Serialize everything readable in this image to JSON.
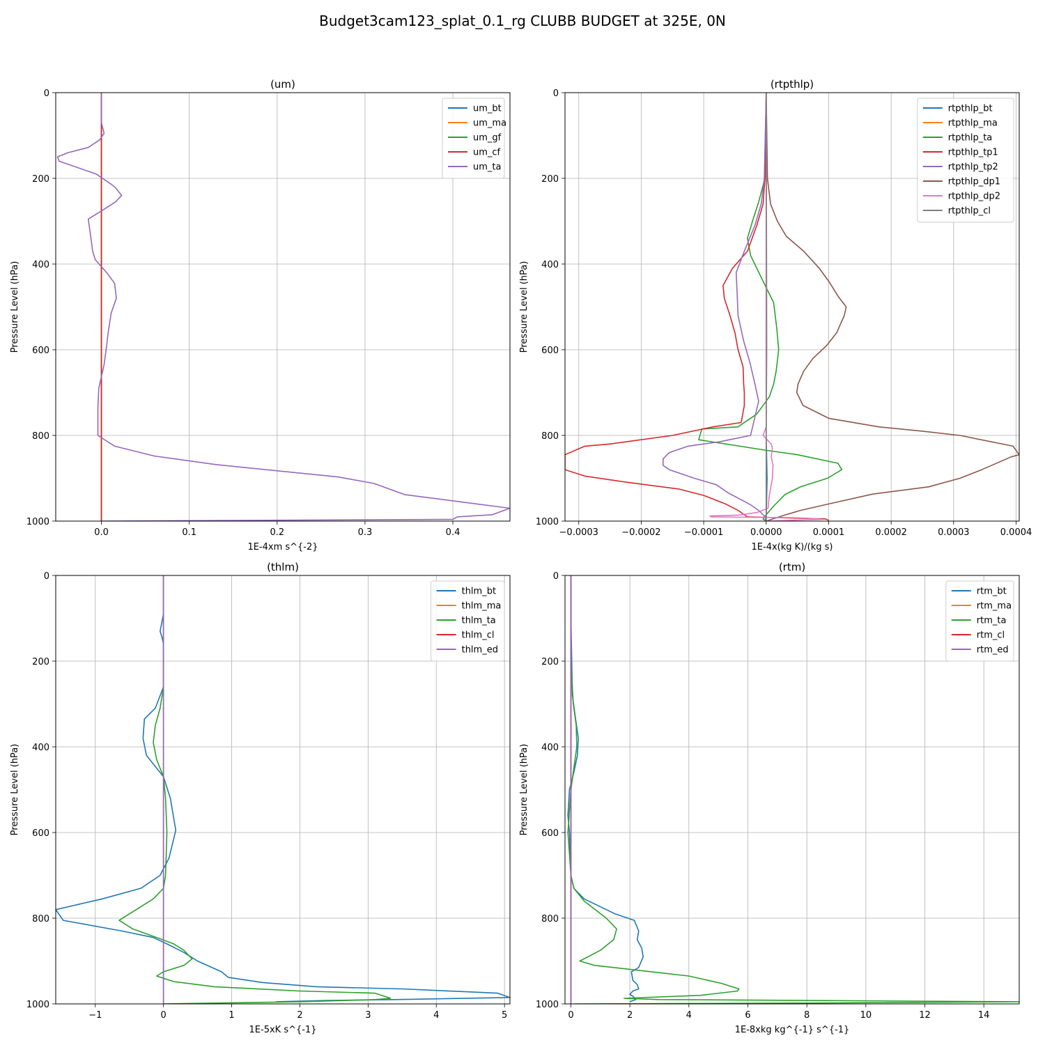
{
  "figure": {
    "title": "Budget3cam123_splat_0.1_rg CLUBB BUDGET at 325E, 0N"
  },
  "colors": [
    "#1f77b4",
    "#ff7f0e",
    "#2ca02c",
    "#d62728",
    "#9467bd",
    "#8c564b",
    "#e377c2",
    "#7f7f7f"
  ],
  "chart_data": [
    {
      "type": "line",
      "title": "(um)",
      "xlabel": "1E-4xm s^{-2}",
      "ylabel": "Pressure Level (hPa)",
      "xlim": [
        -0.052,
        0.465
      ],
      "ylim": [
        1000,
        0
      ],
      "xticks": [
        0.0,
        0.1,
        0.2,
        0.3,
        0.4
      ],
      "xtick_labels": [
        "0.0",
        "0.1",
        "0.2",
        "0.3",
        "0.4"
      ],
      "yticks": [
        0,
        200,
        400,
        600,
        800,
        1000
      ],
      "grid": true,
      "legend": "top-right",
      "series": [
        {
          "name": "um_bt",
          "color": "#1f77b4",
          "x": [
            0,
            0
          ],
          "y": [
            0,
            1000
          ]
        },
        {
          "name": "um_ma",
          "color": "#ff7f0e",
          "x": [
            0,
            0
          ],
          "y": [
            0,
            1000
          ]
        },
        {
          "name": "um_gf",
          "color": "#2ca02c",
          "x": [
            0,
            0
          ],
          "y": [
            0,
            1000
          ]
        },
        {
          "name": "um_cf",
          "color": "#d62728",
          "x": [
            0,
            0
          ],
          "y": [
            0,
            1000
          ]
        },
        {
          "name": "um_ta",
          "color": "#9467bd",
          "x": [
            0,
            0,
            0.003,
            -0.002,
            -0.015,
            -0.038,
            -0.05,
            -0.048,
            -0.006,
            0.012,
            0.016,
            0.023,
            0.016,
            0.001,
            -0.015,
            -0.012,
            -0.01,
            -0.007,
            0.006,
            0.015,
            0.017,
            0.011,
            0.008,
            0.006,
            0.003,
            -0.003,
            -0.004,
            -0.004,
            0.015,
            0.06,
            0.13,
            0.27,
            0.31,
            0.345,
            0.42,
            0.465,
            0.445,
            0.405,
            0.4,
            0
          ],
          "y": [
            0,
            70,
            95,
            110,
            128,
            140,
            150,
            160,
            190,
            215,
            222,
            240,
            255,
            275,
            295,
            338,
            370,
            390,
            420,
            445,
            480,
            515,
            555,
            590,
            635,
            690,
            735,
            800,
            825,
            848,
            868,
            897,
            912,
            938,
            958,
            970,
            985,
            990,
            996,
            1000
          ]
        }
      ]
    },
    {
      "type": "line",
      "title": "(rtpthlp)",
      "xlabel": "1E-4x(kg K)/(kg s)",
      "ylabel": "Pressure Level (hPa)",
      "xlim": [
        -0.000322,
        0.000405
      ],
      "ylim": [
        1000,
        0
      ],
      "xticks": [
        -0.0003,
        -0.0002,
        -0.0001,
        0.0,
        0.0001,
        0.0002,
        0.0003,
        0.0004
      ],
      "xtick_labels": [
        "−0.0003",
        "−0.0002",
        "−0.0001",
        "0.0000",
        "0.0001",
        "0.0002",
        "0.0003",
        "0.0004"
      ],
      "yticks": [
        0,
        200,
        400,
        600,
        800,
        1000
      ],
      "grid": true,
      "legend": "top-right",
      "series": [
        {
          "name": "rtpthlp_bt",
          "color": "#1f77b4",
          "x": [
            0,
            0,
            1.5e-06,
            0
          ],
          "y": [
            0,
            800,
            900,
            1000
          ]
        },
        {
          "name": "rtpthlp_ma",
          "color": "#ff7f0e",
          "x": [
            0,
            0
          ],
          "y": [
            0,
            1000
          ]
        },
        {
          "name": "rtpthlp_ta",
          "color": "#2ca02c",
          "x": [
            0,
            -2e-06,
            -1.2e-05,
            -2.2e-05,
            -3e-05,
            -2.5e-05,
            -5e-06,
            1.2e-05,
            1.7e-05,
            2e-05,
            1.6e-05,
            1.2e-05,
            5e-06,
            -1.5e-05,
            -4.5e-05,
            -0.000103,
            -0.000108,
            1e-06,
            5e-05,
            0.000115,
            0.000121,
            9.8e-05,
            5.5e-05,
            3e-05,
            2.2e-05,
            1.2e-05,
            0,
            -5e-06,
            0
          ],
          "y": [
            0,
            200,
            255,
            300,
            340,
            380,
            440,
            490,
            550,
            600,
            650,
            680,
            710,
            750,
            780,
            785,
            810,
            835,
            845,
            865,
            880,
            900,
            920,
            938,
            950,
            965,
            985,
            995,
            1000
          ]
        },
        {
          "name": "rtpthlp_tp1",
          "color": "#d62728",
          "x": [
            0,
            -2e-06,
            -5e-06,
            -1.5e-05,
            -3e-05,
            -5.4e-05,
            -6.9e-05,
            -6.7e-05,
            -5.8e-05,
            -5e-05,
            -4.5e-05,
            -3.7e-05,
            -3.6e-05,
            -3.5e-05,
            -3.5e-05,
            -4e-05,
            -8.5e-05,
            -0.00015,
            -0.00025,
            -0.00029,
            -0.000322,
            -0.000322,
            -0.00029,
            -0.00022,
            -0.00014,
            -0.0001,
            -6.5e-05,
            -4.5e-05,
            -3e-05,
            2e-05,
            9.5e-05,
            0.0001
          ],
          "y": [
            0,
            200,
            260,
            310,
            370,
            410,
            450,
            480,
            520,
            560,
            600,
            640,
            680,
            700,
            730,
            770,
            780,
            800,
            820,
            825,
            845,
            880,
            895,
            910,
            925,
            940,
            960,
            975,
            990,
            992,
            995,
            998
          ]
        },
        {
          "name": "rtpthlp_tp2",
          "color": "#9467bd",
          "x": [
            0,
            -3e-06,
            -8e-06,
            -1.8e-05,
            -3.5e-05,
            -4.8e-05,
            -4.7e-05,
            -4.5e-05,
            -3.6e-05,
            -2.6e-05,
            -1.8e-05,
            -1.2e-05,
            -2.5e-05,
            -7.5e-05,
            -0.000125,
            -0.000155,
            -0.000165,
            -0.000165,
            -0.000155,
            -0.000115,
            -8e-05,
            -6e-05,
            -4e-05,
            -2.5e-05,
            -1.2e-05,
            -3e-06,
            0
          ],
          "y": [
            0,
            200,
            260,
            310,
            370,
            420,
            450,
            520,
            580,
            630,
            680,
            720,
            800,
            815,
            825,
            840,
            855,
            870,
            880,
            900,
            915,
            935,
            950,
            962,
            975,
            988,
            1000
          ]
        },
        {
          "name": "rtpthlp_dp1",
          "color": "#8c564b",
          "x": [
            0,
            2e-06,
            7e-06,
            1.8e-05,
            3.2e-05,
            6e-05,
            8.5e-05,
            0.0001,
            0.000115,
            0.000128,
            0.000125,
            0.000113,
            9.7e-05,
            7.5e-05,
            6e-05,
            5.1e-05,
            4.9e-05,
            5.9e-05,
            0.0001,
            0.00018,
            0.00025,
            0.00031,
            0.000395,
            0.000405,
            0.000392,
            0.000345,
            0.00031,
            0.00026,
            0.00017,
            0.0001,
            5.5e-05,
            2.5e-05,
            0
          ],
          "y": [
            0,
            200,
            260,
            300,
            335,
            370,
            410,
            440,
            475,
            500,
            520,
            560,
            590,
            620,
            650,
            680,
            700,
            730,
            760,
            780,
            790,
            800,
            825,
            845,
            850,
            880,
            900,
            920,
            937,
            960,
            975,
            988,
            1000
          ]
        },
        {
          "name": "rtpthlp_dp2",
          "color": "#e377c2",
          "x": [
            0,
            1e-06,
            0,
            -5e-06,
            8e-06,
            1e-05,
            8e-06,
            1.1e-05,
            1e-05,
            5e-06,
            3e-06,
            -1.5e-05,
            -4.5e-05,
            -9e-05,
            -8.8e-05,
            -3e-05,
            4.5e-05,
            7.5e-05,
            8.8e-05,
            0
          ],
          "y": [
            0,
            600,
            780,
            800,
            820,
            830,
            850,
            870,
            900,
            940,
            970,
            980,
            986,
            988,
            990,
            991,
            992,
            994,
            996,
            1000
          ]
        },
        {
          "name": "rtpthlp_cl",
          "color": "#7f7f7f",
          "x": [
            0,
            0
          ],
          "y": [
            0,
            1000
          ]
        }
      ]
    },
    {
      "type": "line",
      "title": "(thlm)",
      "xlabel": "1E-5xK s^{-1}",
      "ylabel": "Pressure Level (hPa)",
      "xlim": [
        -1.58,
        5.08
      ],
      "ylim": [
        1000,
        0
      ],
      "xticks": [
        -1,
        0,
        1,
        2,
        3,
        4,
        5
      ],
      "xtick_labels": [
        "−1",
        "0",
        "1",
        "2",
        "3",
        "4",
        "5"
      ],
      "yticks": [
        0,
        200,
        400,
        600,
        800,
        1000
      ],
      "grid": true,
      "legend": "top-right",
      "series": [
        {
          "name": "thlm_bt",
          "color": "#1f77b4",
          "x": [
            0,
            0,
            -0.05,
            -0.02,
            0,
            0,
            -0.12,
            -0.28,
            -0.3,
            -0.25,
            0,
            0.1,
            0.18,
            0.08,
            -0.05,
            -0.33,
            -0.9,
            -1.58,
            -1.47,
            -0.6,
            -0.15,
            0.05,
            0.3,
            0.5,
            0.85,
            0.95,
            1.45,
            2.25,
            3.5,
            4.9,
            5.08,
            3.4,
            2.4,
            1.65
          ],
          "y": [
            0,
            90,
            130,
            145,
            160,
            260,
            310,
            335,
            380,
            420,
            470,
            520,
            595,
            660,
            700,
            730,
            755,
            780,
            805,
            830,
            845,
            860,
            880,
            900,
            925,
            938,
            950,
            960,
            965,
            975,
            985,
            990,
            992,
            995
          ]
        },
        {
          "name": "thlm_ma",
          "color": "#ff7f0e",
          "x": [
            0,
            0
          ],
          "y": [
            0,
            1000
          ]
        },
        {
          "name": "thlm_ta",
          "color": "#2ca02c",
          "x": [
            0,
            0,
            -0.05,
            -0.12,
            -0.15,
            -0.1,
            0,
            0.03,
            0.05,
            0.03,
            0,
            -0.15,
            -0.65,
            -0.45,
            -0.1,
            0.15,
            0.3,
            0.42,
            0.3,
            0,
            -0.1,
            0.15,
            0.75,
            2.0,
            3.1,
            3.33,
            3.1,
            2.0,
            0
          ],
          "y": [
            0,
            260,
            310,
            350,
            390,
            430,
            470,
            520,
            600,
            700,
            730,
            755,
            805,
            825,
            845,
            860,
            875,
            895,
            910,
            925,
            935,
            948,
            960,
            970,
            975,
            987,
            990,
            995,
            1000
          ]
        },
        {
          "name": "thlm_cl",
          "color": "#d62728",
          "x": [
            0,
            0
          ],
          "y": [
            0,
            1000
          ]
        },
        {
          "name": "thlm_ed",
          "color": "#9467bd",
          "x": [
            0,
            0
          ],
          "y": [
            0,
            1000
          ]
        }
      ]
    },
    {
      "type": "line",
      "title": "(rtm)",
      "xlabel": "1E-8xkg kg^{-1} s^{-1}",
      "ylabel": "Pressure Level (hPa)",
      "xlim": [
        -0.2,
        15.2
      ],
      "ylim": [
        1000,
        0
      ],
      "xticks": [
        0,
        2,
        4,
        6,
        8,
        10,
        12,
        14
      ],
      "xtick_labels": [
        "0",
        "2",
        "4",
        "6",
        "8",
        "10",
        "12",
        "14"
      ],
      "yticks": [
        0,
        200,
        400,
        600,
        800,
        1000
      ],
      "grid": true,
      "legend": "top-right",
      "series": [
        {
          "name": "rtm_bt",
          "color": "#1f77b4",
          "x": [
            0,
            0,
            0.05,
            0.15,
            0.25,
            0.22,
            0.1,
            -0.05,
            -0.1,
            -0.05,
            0,
            0.1,
            0.45,
            1.5,
            2.15,
            2.3,
            2.25,
            2.4,
            2.45,
            2.3,
            2.05,
            2.1,
            2.25,
            2.3,
            2.1,
            2.0,
            2.1,
            2.2,
            2.0
          ],
          "y": [
            0,
            100,
            280,
            330,
            380,
            420,
            460,
            500,
            560,
            600,
            700,
            730,
            755,
            790,
            805,
            830,
            850,
            870,
            890,
            915,
            925,
            945,
            955,
            965,
            970,
            978,
            982,
            990,
            995
          ]
        },
        {
          "name": "rtm_ma",
          "color": "#ff7f0e",
          "x": [
            0,
            0
          ],
          "y": [
            0,
            1000
          ]
        },
        {
          "name": "rtm_ta",
          "color": "#2ca02c",
          "x": [
            0,
            0,
            0.08,
            0.18,
            0.2,
            0.1,
            0,
            -0.1,
            -0.05,
            0,
            0.1,
            0.45,
            1.2,
            1.55,
            1.45,
            1.0,
            0.3,
            0.8,
            4.0,
            5.1,
            5.7,
            5.65,
            4.4,
            1.8,
            3.0,
            15.2,
            8.0,
            0.1
          ],
          "y": [
            0,
            200,
            300,
            350,
            400,
            450,
            500,
            600,
            650,
            700,
            730,
            760,
            800,
            825,
            850,
            875,
            900,
            910,
            935,
            952,
            965,
            970,
            980,
            987,
            990,
            995,
            998,
            1000
          ]
        },
        {
          "name": "rtm_cl",
          "color": "#d62728",
          "x": [
            0,
            0
          ],
          "y": [
            0,
            1000
          ]
        },
        {
          "name": "rtm_ed",
          "color": "#9467bd",
          "x": [
            0,
            0
          ],
          "y": [
            0,
            1000
          ]
        }
      ]
    }
  ]
}
